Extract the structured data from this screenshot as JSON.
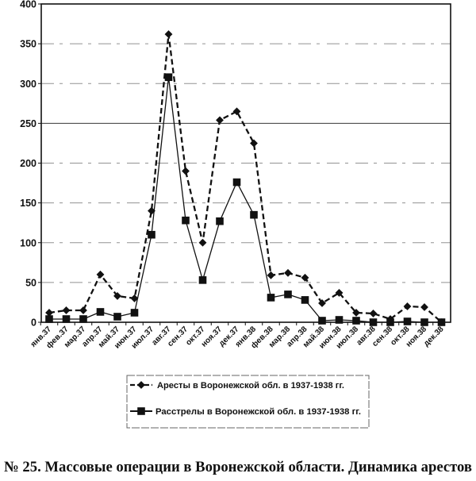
{
  "chart_data": {
    "type": "line",
    "title": "",
    "xlabel": "",
    "ylabel": "",
    "ylim": [
      0,
      400
    ],
    "yticks": [
      0,
      50,
      100,
      150,
      200,
      250,
      300,
      350,
      400
    ],
    "grid": true,
    "legend_position": "bottom",
    "categories": [
      "янв.37",
      "фев.37",
      "мар.37",
      "апр.37",
      "май.37",
      "июн.37",
      "июл.37",
      "авг.37",
      "сен.37",
      "окт.37",
      "ноя.37",
      "дек.37",
      "янв.38",
      "фев.38",
      "мар.38",
      "апр.38",
      "май.38",
      "июн.38",
      "июл.38",
      "авг.38",
      "сен.38",
      "окт.38",
      "ноя.38",
      "дек.38"
    ],
    "series": [
      {
        "name": "Аресты в Воронежской обл. в 1937-1938 гг.",
        "marker": "diamond",
        "line_style": "dashed",
        "color": "#111111",
        "values": [
          12,
          15,
          15,
          60,
          33,
          30,
          140,
          362,
          190,
          100,
          254,
          265,
          225,
          59,
          62,
          56,
          24,
          37,
          12,
          11,
          4,
          20,
          19,
          0
        ]
      },
      {
        "name": "Расстрелы в Воронежской обл. в 1937-1938 гг.",
        "marker": "square",
        "line_style": "solid",
        "color": "#111111",
        "values": [
          4,
          4,
          4,
          13,
          7,
          12,
          110,
          308,
          128,
          53,
          127,
          176,
          135,
          31,
          35,
          28,
          2,
          3,
          2,
          0,
          0,
          1,
          0,
          0
        ]
      }
    ]
  },
  "caption": "№ 25. Массовые операции в Воронежской области. Динамика арестов"
}
